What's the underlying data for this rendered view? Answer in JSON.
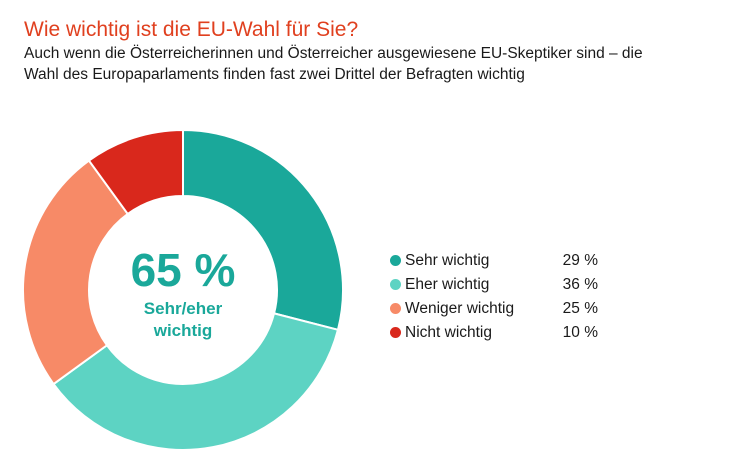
{
  "header": {
    "title": "Wie wichtig ist die EU-Wahl für Sie?",
    "subtitle_line1": "Auch wenn die Österreicherinnen und Österreicher ausgewiesene EU-Skeptiker sind – die",
    "subtitle_line2": "Wahl des Europaparlaments finden fast zwei Drittel der Befragten wichtig"
  },
  "center": {
    "value": "65 %",
    "label_line1": "Sehr/eher",
    "label_line2": "wichtig"
  },
  "legend": [
    {
      "label": "Sehr wichtig",
      "value_text": "29 %",
      "color": "#1aa89a"
    },
    {
      "label": "Eher wichtig",
      "value_text": "36 %",
      "color": "#5dd3c3"
    },
    {
      "label": "Weniger wichtig",
      "value_text": "25 %",
      "color": "#f78a67"
    },
    {
      "label": "Nicht wichtig",
      "value_text": "10 %",
      "color": "#d9281c"
    }
  ],
  "chart_data": {
    "type": "pie",
    "variant": "donut",
    "title": "Wie wichtig ist die EU-Wahl für Sie?",
    "categories": [
      "Sehr wichtig",
      "Eher wichtig",
      "Weniger wichtig",
      "Nicht wichtig"
    ],
    "values": [
      29,
      36,
      25,
      10
    ],
    "unit": "%",
    "colors": [
      "#1aa89a",
      "#5dd3c3",
      "#f78a67",
      "#d9281c"
    ],
    "start": "top",
    "direction": "clockwise",
    "center_annotation": "65 % Sehr/eher wichtig",
    "legend_position": "right"
  }
}
